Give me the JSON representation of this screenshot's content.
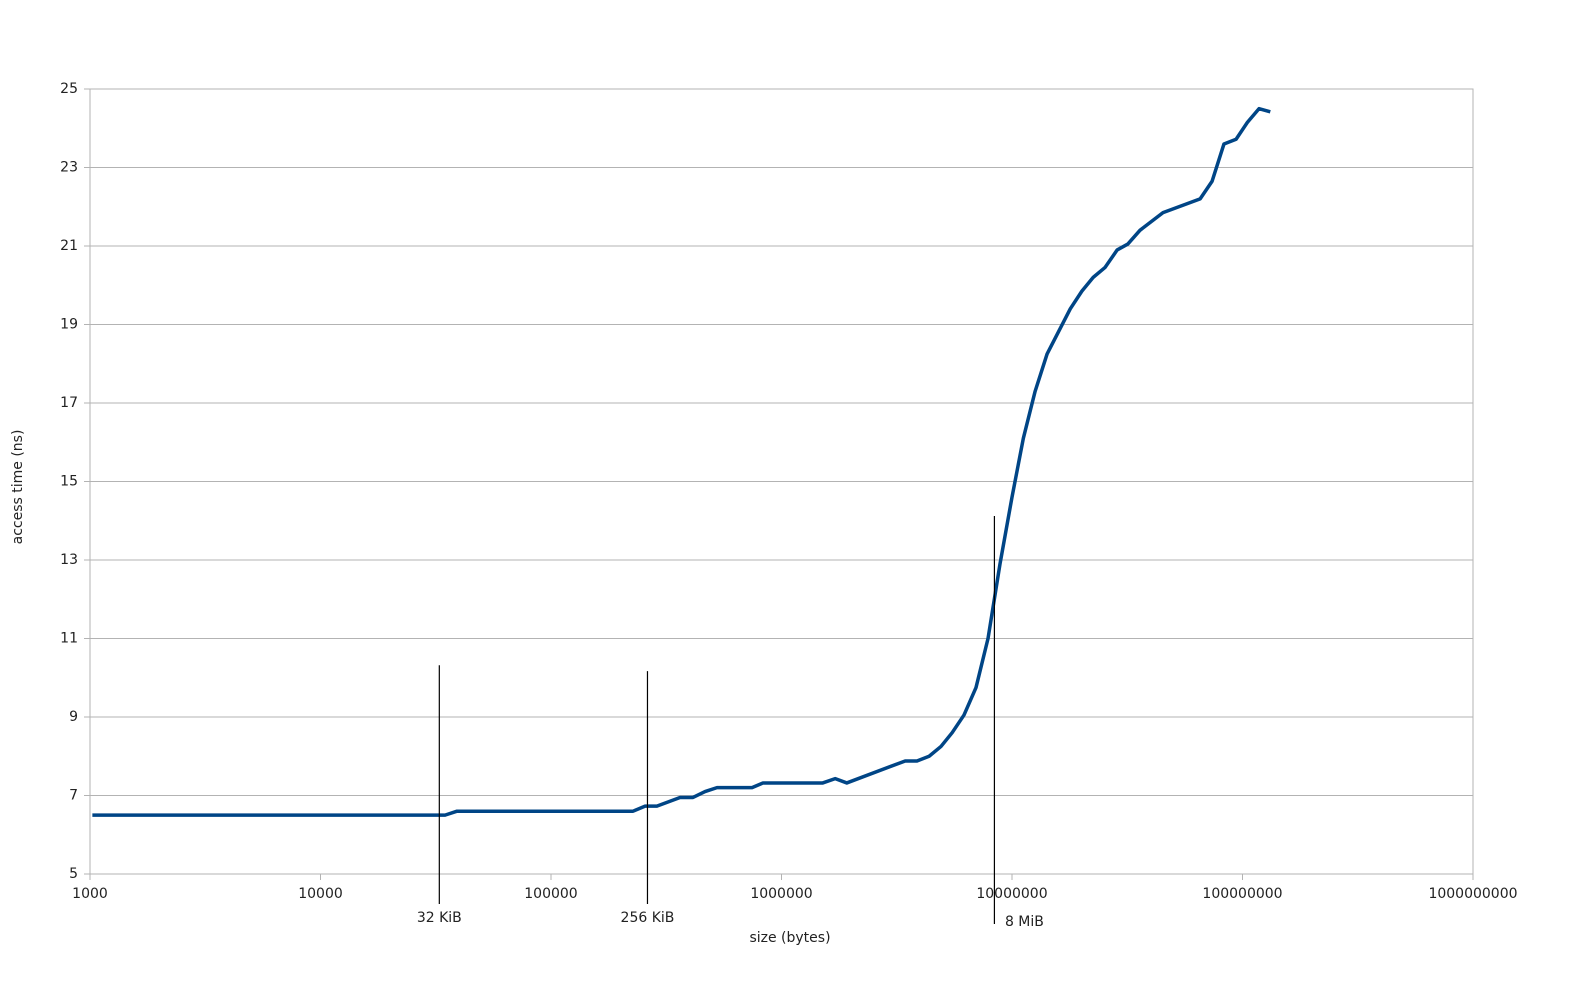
{
  "chart_data": {
    "type": "line",
    "x_label": "size (bytes)",
    "y_label": "access time (ns)",
    "xscale": "log",
    "grid": true,
    "xlim": [
      1000,
      1000000000
    ],
    "xticks": [
      1000,
      10000,
      100000,
      1000000,
      10000000,
      100000000,
      1000000000
    ],
    "ylim": [
      5,
      25
    ],
    "yticks": [
      5,
      7,
      9,
      11,
      13,
      15,
      17,
      19,
      21,
      23,
      25
    ],
    "x": [
      1024,
      34700,
      39100,
      227000,
      256000,
      288000,
      363000,
      413000,
      466000,
      525000,
      745000,
      831000,
      1510000,
      1710000,
      1920000,
      3440000,
      3870000,
      4370000,
      4920000,
      5500000,
      6190000,
      6980000,
      7870000,
      8870000,
      10000000,
      11200000,
      12600000,
      14200000,
      17900000,
      20100000,
      22500000,
      25300000,
      28600000,
      31800000,
      35900000,
      45200000,
      65500000,
      73800000,
      83100000,
      93800000,
      105000000,
      118000000,
      132000000
    ],
    "series": [
      {
        "name": "access time",
        "color": "#004586",
        "values": [
          6.5,
          6.5,
          6.6,
          6.6,
          6.73,
          6.73,
          6.95,
          6.95,
          7.1,
          7.2,
          7.2,
          7.32,
          7.32,
          7.43,
          7.32,
          7.88,
          7.88,
          8.0,
          8.25,
          8.6,
          9.05,
          9.75,
          11.0,
          12.9,
          14.6,
          16.1,
          17.3,
          18.25,
          19.4,
          19.85,
          20.2,
          20.45,
          20.9,
          21.05,
          21.4,
          21.85,
          22.2,
          22.65,
          23.6,
          23.72,
          24.15,
          24.5,
          24.42
        ]
      }
    ],
    "annotations": [
      {
        "x": 32768,
        "y": 10.32,
        "label": "32 KiB"
      },
      {
        "x": 262144,
        "y": 10.17,
        "label": "256 KiB"
      },
      {
        "x": 8388608,
        "y": 14.12,
        "label": "8 MiB"
      }
    ]
  }
}
